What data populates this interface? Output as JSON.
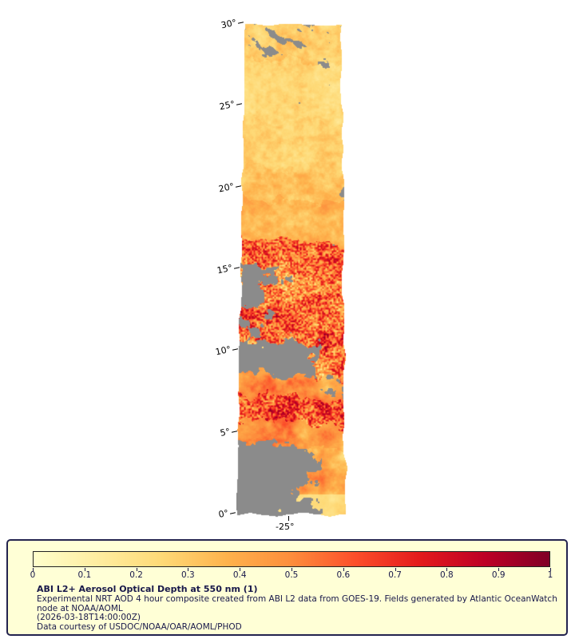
{
  "map": {
    "lat_axis": {
      "ticks": [
        "30°",
        "25°",
        "20°",
        "15°",
        "10°",
        "5°",
        "0°"
      ]
    },
    "lon_axis": {
      "tick": "-25°"
    },
    "missing_color": "#8b8b8b",
    "colormap": [
      {
        "t": 0.0,
        "c": "#ffffcc"
      },
      {
        "t": 0.125,
        "c": "#ffeda0"
      },
      {
        "t": 0.25,
        "c": "#fed976"
      },
      {
        "t": 0.375,
        "c": "#feb24c"
      },
      {
        "t": 0.5,
        "c": "#fd8d3c"
      },
      {
        "t": 0.625,
        "c": "#fc4e2a"
      },
      {
        "t": 0.75,
        "c": "#e31a1c"
      },
      {
        "t": 0.875,
        "c": "#bd0026"
      },
      {
        "t": 1.0,
        "c": "#800026"
      }
    ],
    "bands": [
      {
        "lat_bot": 27.8,
        "base": 0.3,
        "amp": 0.1,
        "gray": 0.36,
        "bias": 0.0,
        "streak": 1
      },
      {
        "lat_bot": 24.0,
        "base": 0.25,
        "amp": 0.08,
        "gray": 0.1,
        "bias": 0.0,
        "streak": 1
      },
      {
        "lat_bot": 21.0,
        "base": 0.28,
        "amp": 0.08,
        "gray": 0.05,
        "bias": 0.0,
        "streak": 0
      },
      {
        "lat_bot": 19.3,
        "base": 0.31,
        "amp": 0.1,
        "gray": 0.24,
        "bias": 0.0,
        "streak": 0
      },
      {
        "lat_bot": 16.8,
        "base": 0.37,
        "amp": 0.11,
        "gray": 0.08,
        "bias": 0.0,
        "streak": 0
      },
      {
        "lat_bot": 15.1,
        "base": 0.54,
        "amp": 0.22,
        "gray": 0.14,
        "bias": -0.2,
        "streak": 0
      },
      {
        "lat_bot": 13.7,
        "base": 0.5,
        "amp": 0.26,
        "gray": 0.46,
        "bias": 0.15,
        "streak": 0
      },
      {
        "lat_bot": 10.6,
        "base": 0.63,
        "amp": 0.3,
        "gray": 0.22,
        "bias": 0.5,
        "streak": 0
      },
      {
        "lat_bot": 8.6,
        "base": 0.5,
        "amp": 0.28,
        "gray": 0.52,
        "bias": 0.7,
        "streak": 0
      },
      {
        "lat_bot": 7.2,
        "base": 0.46,
        "amp": 0.22,
        "gray": 0.2,
        "bias": -0.45,
        "streak": 0
      },
      {
        "lat_bot": 5.6,
        "base": 0.58,
        "amp": 0.32,
        "gray": 0.1,
        "bias": 0.0,
        "streak": 0
      },
      {
        "lat_bot": 4.4,
        "base": 0.46,
        "amp": 0.2,
        "gray": 0.12,
        "bias": 0.0,
        "streak": 0
      },
      {
        "lat_bot": -5.0,
        "base": 0.4,
        "amp": 0.24,
        "gray": 0.62,
        "bias": 0.8,
        "streak": 0
      }
    ]
  },
  "legend": {
    "panel_bg": "#ffffd6",
    "panel_border": "#23234f",
    "text_color": "#18184a",
    "colorbar": {
      "min": 0,
      "max": 1,
      "tick_labels": [
        "0",
        "0.1",
        "0.2",
        "0.3",
        "0.4",
        "0.5",
        "0.6",
        "0.7",
        "0.8",
        "0.9",
        "1"
      ]
    },
    "caption": {
      "title": "ABI L2+ Aerosol Optical Depth at 550 nm (1)",
      "body": "Experimental NRT AOD 4 hour composite created from ABI L2 data from GOES-19. Fields generated by Atlantic OceanWatch node at NOAA/AOML",
      "timestamp": "(2026-03-18T14:00:00Z)",
      "credit": "Data courtesy of USDOC/NOAA/OAR/AOML/PHOD"
    }
  }
}
